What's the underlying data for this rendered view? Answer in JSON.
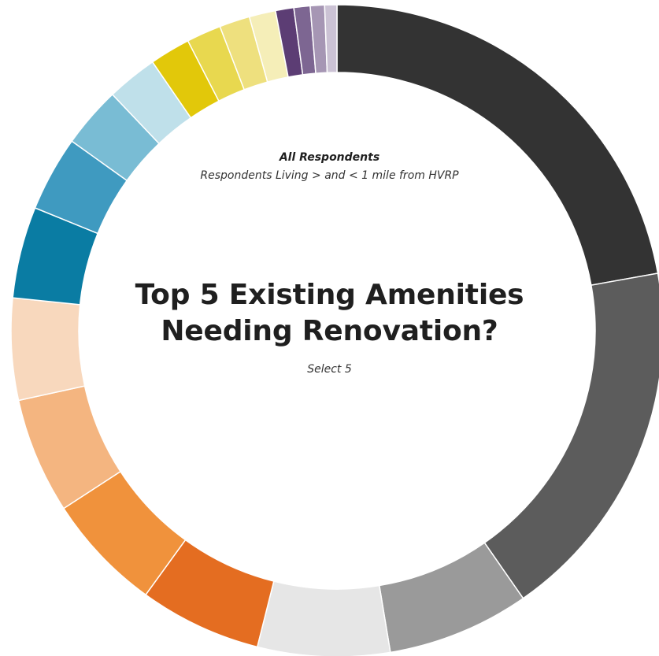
{
  "chart_data": {
    "type": "pie",
    "title": "Top 5 Existing Amenities Needing Renovation?",
    "subtitle_primary": "All Respondents",
    "subtitle_secondary": "Respondents Living > and <  1 mile from HVRP",
    "instruction": "Select 5",
    "style": "donut",
    "slices": [
      {
        "value": 22.0,
        "color": "#333333"
      },
      {
        "value": 18.0,
        "color": "#5c5c5c"
      },
      {
        "value": 7.0,
        "color": "#9a9a9a"
      },
      {
        "value": 6.5,
        "color": "#e6e6e6"
      },
      {
        "value": 6.0,
        "color": "#e46d21"
      },
      {
        "value": 5.8,
        "color": "#f0923c"
      },
      {
        "value": 5.7,
        "color": "#f4b580"
      },
      {
        "value": 5.0,
        "color": "#f8d8bd"
      },
      {
        "value": 4.5,
        "color": "#0a7ca3"
      },
      {
        "value": 3.7,
        "color": "#3f9ac0"
      },
      {
        "value": 3.0,
        "color": "#79bcd4"
      },
      {
        "value": 2.5,
        "color": "#bfe0ea"
      },
      {
        "value": 2.0,
        "color": "#e2c80a"
      },
      {
        "value": 1.7,
        "color": "#e8d84f"
      },
      {
        "value": 1.5,
        "color": "#eee07e"
      },
      {
        "value": 1.3,
        "color": "#f5eeb8"
      },
      {
        "value": 0.9,
        "color": "#5c3d74"
      },
      {
        "value": 0.8,
        "color": "#7d6692"
      },
      {
        "value": 0.7,
        "color": "#a696b4"
      },
      {
        "value": 0.6,
        "color": "#cbc2d4"
      }
    ]
  }
}
